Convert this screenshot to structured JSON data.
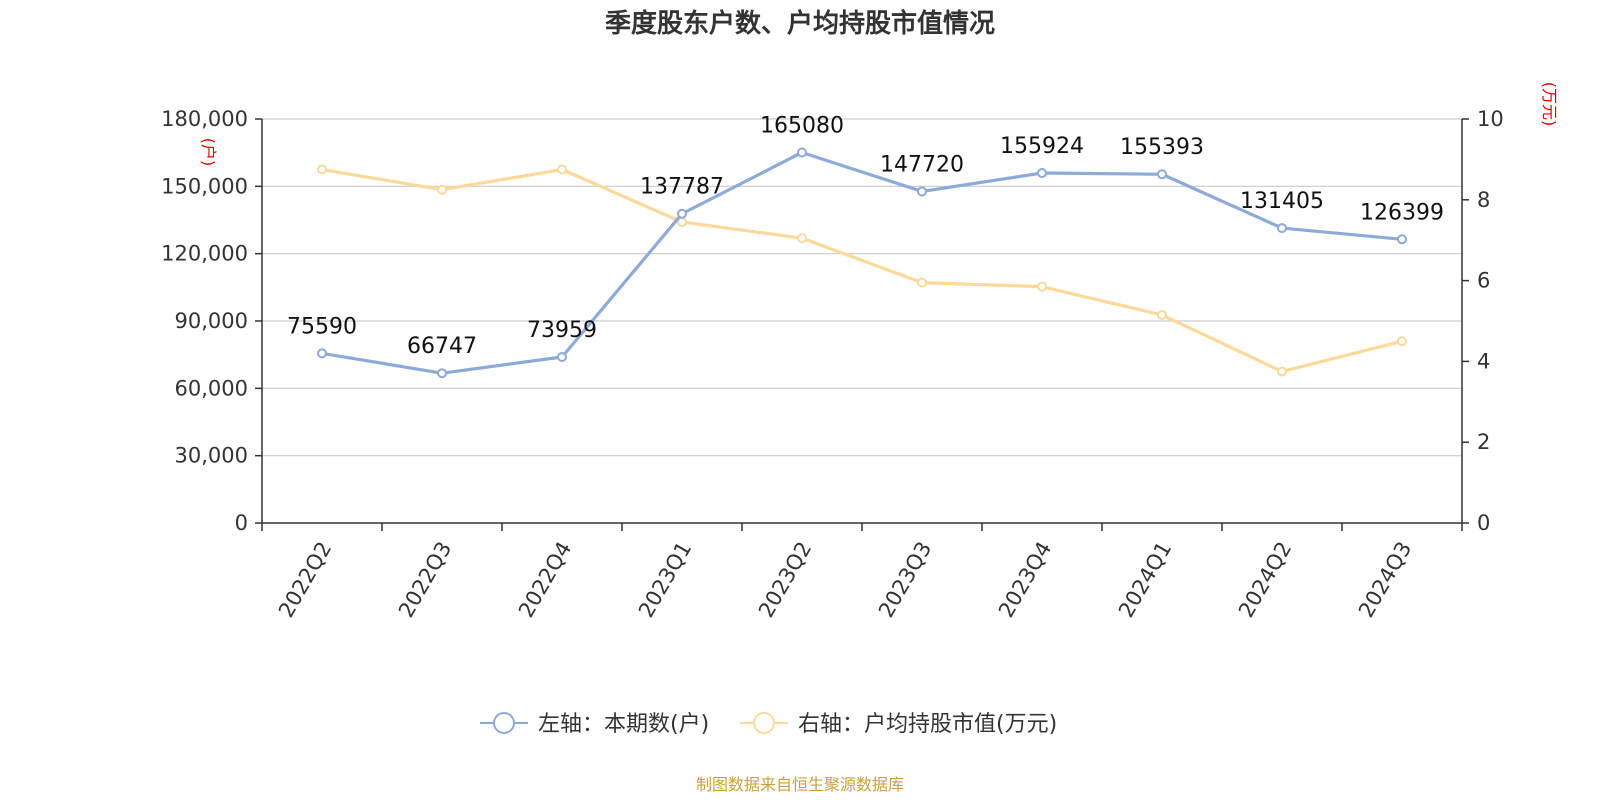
{
  "title": "季度股东户数、户均持股市值情况",
  "source": "制图数据来自恒生聚源数据库",
  "colors": {
    "series1": "#8eaad8",
    "series2": "#fbd99a",
    "unit": "#e00000",
    "source": "#c8a13a",
    "grid": "#cccccc"
  },
  "chart_data": {
    "type": "line",
    "categories": [
      "2022Q2",
      "2022Q3",
      "2022Q4",
      "2023Q1",
      "2023Q2",
      "2023Q3",
      "2023Q4",
      "2024Q1",
      "2024Q2",
      "2024Q3"
    ],
    "y_left": {
      "unit": "(户)",
      "min": 0,
      "max": 180000,
      "ticks": [
        "0",
        "30,000",
        "60,000",
        "90,000",
        "120,000",
        "150,000",
        "180,000"
      ]
    },
    "y_right": {
      "unit": "(万元)",
      "min": 0,
      "max": 10,
      "ticks": [
        "0",
        "2",
        "4",
        "6",
        "8",
        "10"
      ]
    },
    "grid": true,
    "legend_position": "bottom",
    "series": [
      {
        "name": "左轴：本期数(户)",
        "axis": "left",
        "values": [
          75590,
          66747,
          73959,
          137787,
          165080,
          147720,
          155924,
          155393,
          131405,
          126399
        ],
        "labels": [
          "75590",
          "66747",
          "73959",
          "137787",
          "165080",
          "147720",
          "155924",
          "155393",
          "131405",
          "126399"
        ]
      },
      {
        "name": "右轴：户均持股市值(万元)",
        "axis": "right",
        "values": [
          8.75,
          8.25,
          8.75,
          7.45,
          7.05,
          5.95,
          5.85,
          5.15,
          3.75,
          4.5
        ]
      }
    ]
  }
}
